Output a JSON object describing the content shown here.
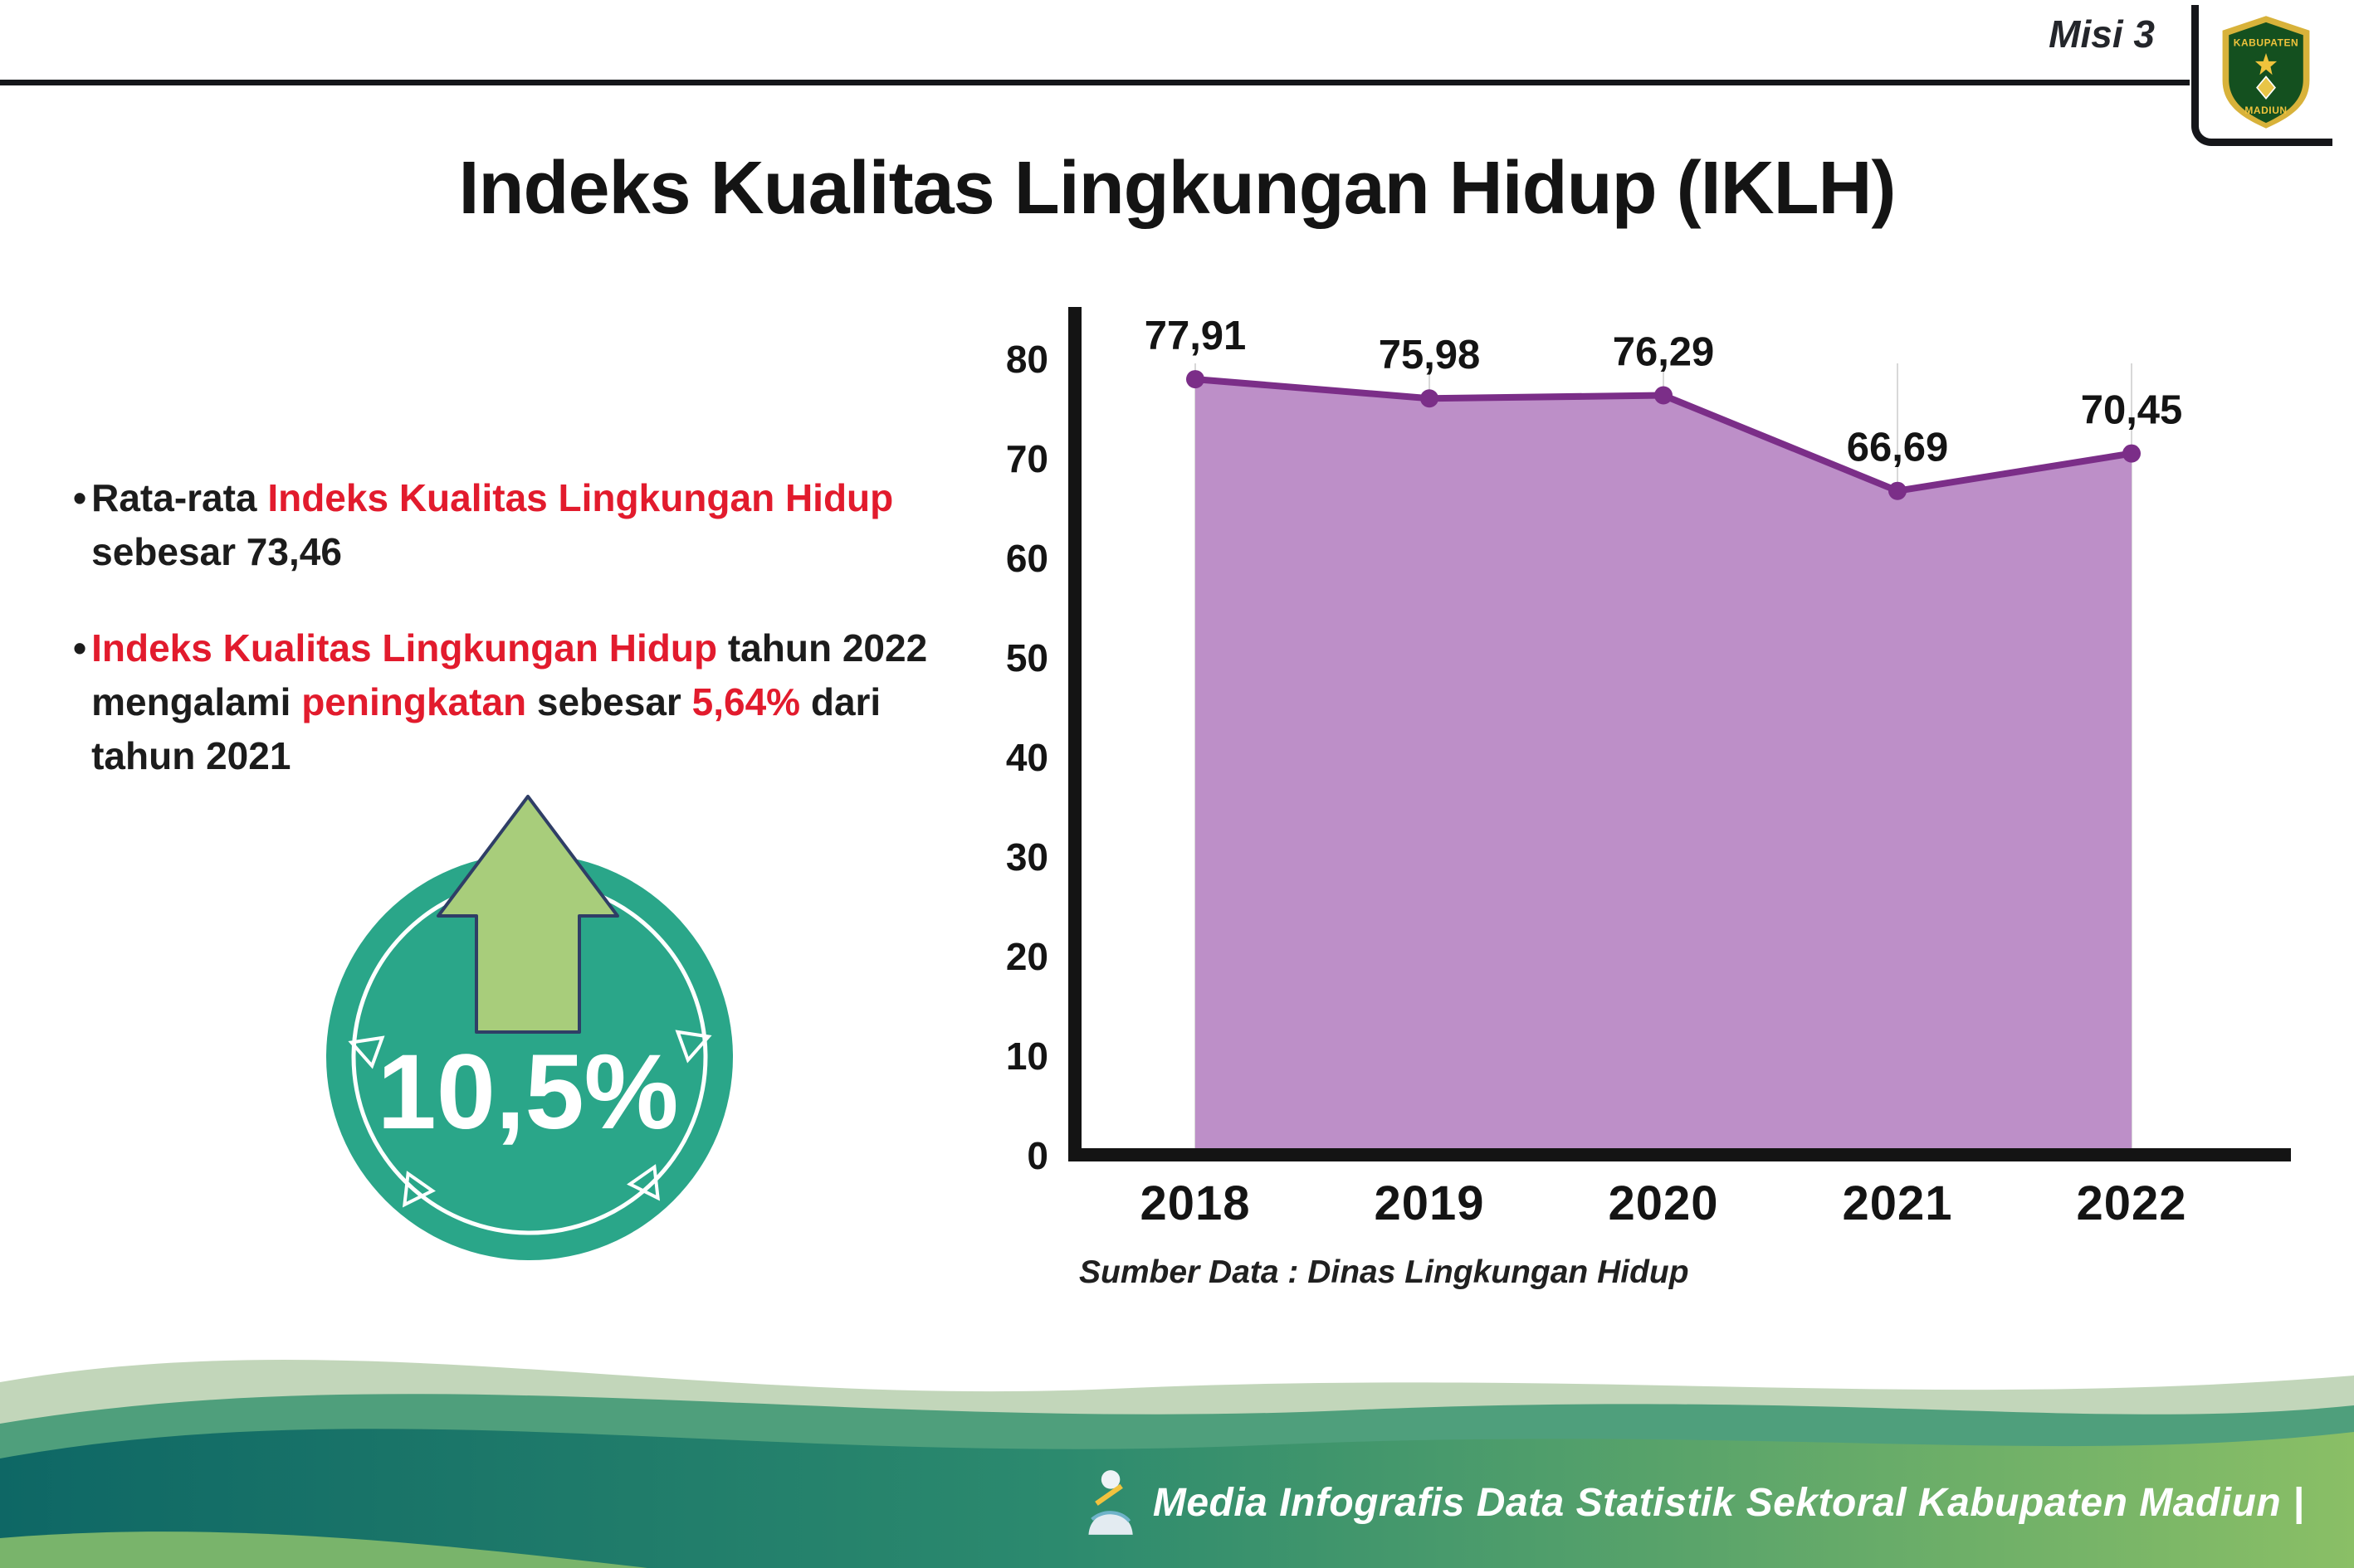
{
  "colors": {
    "accent_red": "#e21b2d",
    "badge_teal": "#2aa689",
    "arrow_green": "#a8cd7b",
    "line_purple": "#7b2e88",
    "area_purple": "#bd8fc8",
    "footer_teal": "#0e6765",
    "footer_green": "#8abf66"
  },
  "header": {
    "misi_label": "Misi 3",
    "title": "Indeks Kualitas Lingkungan Hidup (IKLH)",
    "logo_top": "KABUPATEN",
    "logo_bottom": "MADIUN"
  },
  "bullets": {
    "b1": [
      {
        "text": "Rata-rata "
      },
      {
        "text": "Indeks Kualitas Lingkungan Hidup",
        "red": true
      },
      {
        "text": " sebesar 73,46"
      }
    ],
    "b2": [
      {
        "text": "Indeks Kualitas Lingkungan Hidup",
        "red": true
      },
      {
        "text": " tahun 2022 mengalami "
      },
      {
        "text": "peningkatan",
        "red": true
      },
      {
        "text": " sebesar "
      },
      {
        "text": "5,64%",
        "red": true
      },
      {
        "text": " dari tahun 2021"
      }
    ]
  },
  "badge": {
    "value": "10,5%"
  },
  "chart_data": {
    "type": "area",
    "title": "Indeks Kualitas Lingkungan Hidup (IKLH)",
    "categories": [
      "2018",
      "2019",
      "2020",
      "2021",
      "2022"
    ],
    "values": [
      77.91,
      75.98,
      76.29,
      66.69,
      70.45
    ],
    "point_labels": [
      "77,91",
      "75,98",
      "76,29",
      "66,69",
      "70,45"
    ],
    "ylim": [
      0,
      80
    ],
    "ytick_step": 10,
    "grid": true,
    "legend": false,
    "line_color": "#7b2e88",
    "fill_color": "#bd8fc8",
    "source_note": "Sumber Data : Dinas Lingkungan Hidup"
  },
  "source": "Sumber Data : Dinas Lingkungan Hidup",
  "footer": {
    "text": "Media Infografis Data Statistik Sektoral Kabupaten Madiun |"
  }
}
